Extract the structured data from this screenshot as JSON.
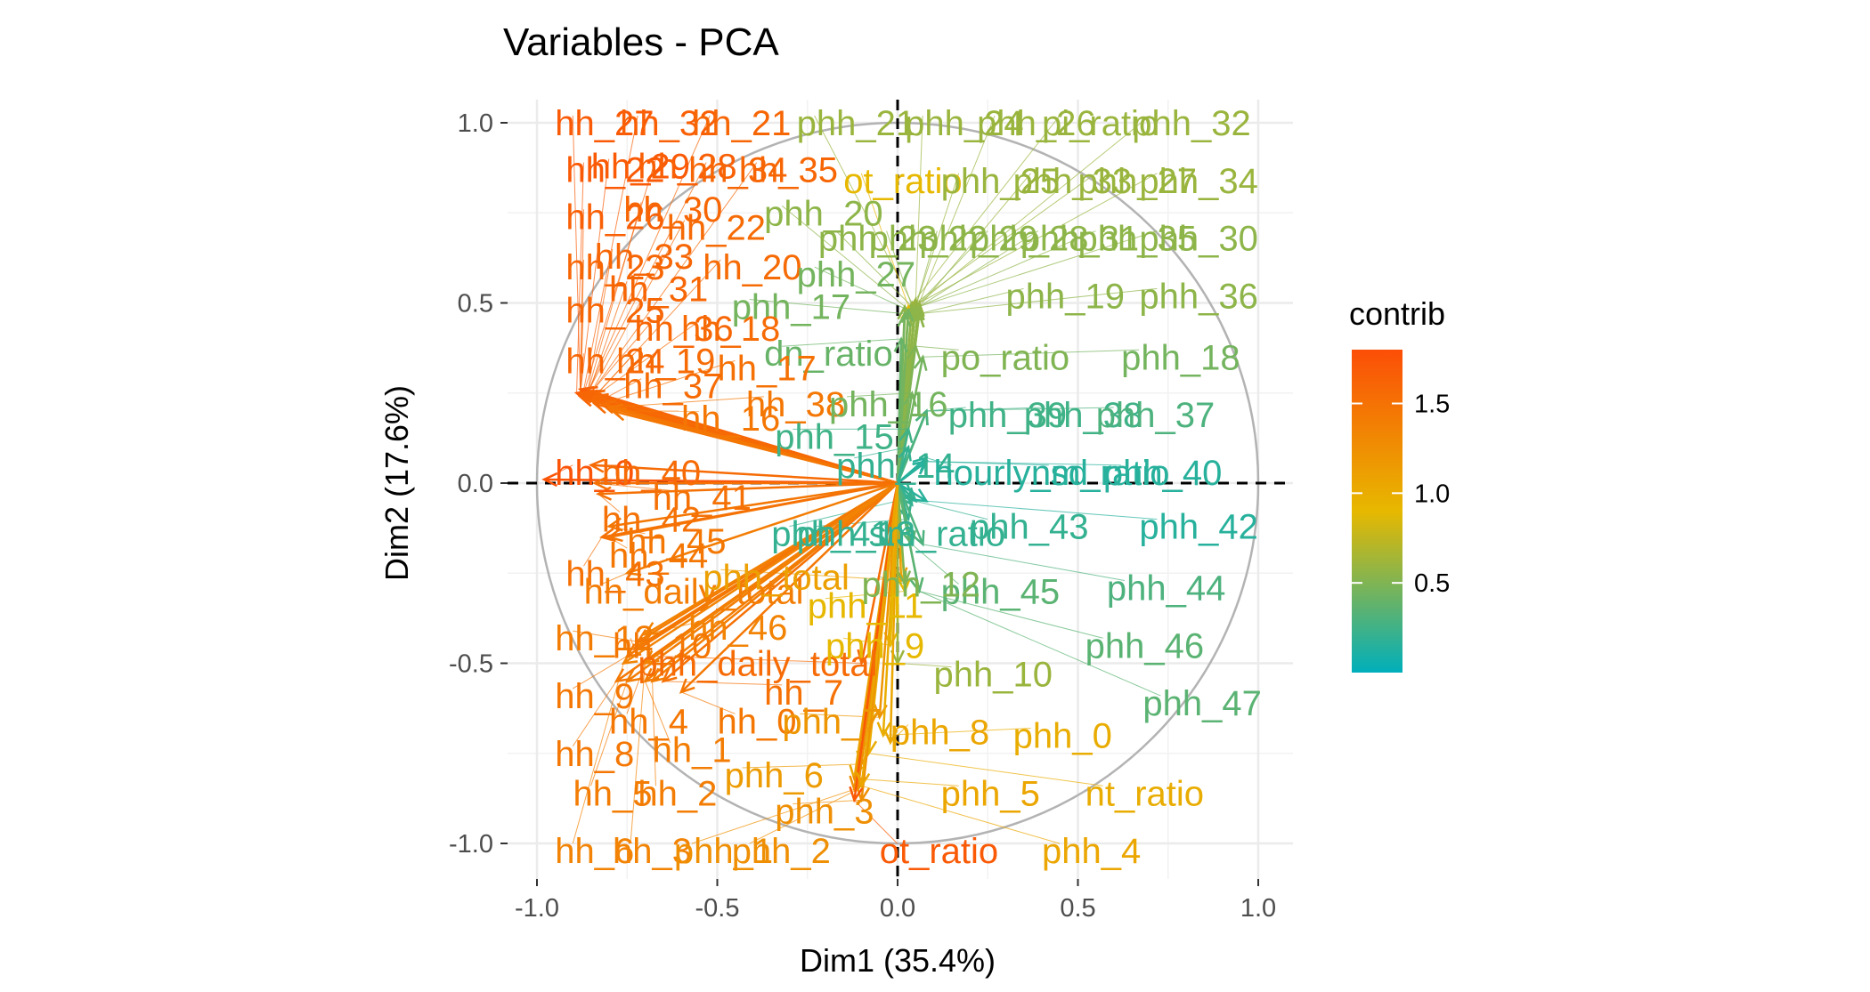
{
  "chart_data": {
    "type": "scatter",
    "title": "Variables - PCA",
    "xlabel": "Dim1 (35.4%)",
    "ylabel": "Dim2 (17.6%)",
    "xlim": [
      -1.0,
      1.0
    ],
    "ylim": [
      -1.0,
      1.0
    ],
    "xticks": [
      -1.0,
      -0.5,
      0.0,
      0.5,
      1.0
    ],
    "xtick_labels": [
      "-1.0",
      "-0.5",
      "0.0",
      "0.5",
      "1.0"
    ],
    "yticks": [
      1.0,
      0.5,
      0.0,
      -0.5,
      -1.0
    ],
    "ytick_labels": [
      "1.0",
      "0.5",
      "0.0",
      "-0.5",
      "-1.0"
    ],
    "grid": true,
    "correlation_circle": true,
    "reference_lines": [
      {
        "axis": "x",
        "value": 0,
        "style": "dashed"
      },
      {
        "axis": "y",
        "value": 0,
        "style": "dashed"
      }
    ],
    "color_scale": {
      "variable": "contrib",
      "range": [
        0.0,
        1.8
      ],
      "ticks": [
        0.5,
        1.0,
        1.5
      ],
      "tick_labels": [
        "0.5",
        "1.0",
        "1.5"
      ],
      "colors": [
        "#00AFBB",
        "#E7B800",
        "#FC4E07"
      ],
      "legend_position": "right"
    },
    "variables": [
      {
        "name": "hh_27",
        "x": -0.88,
        "y": 0.26,
        "lx": -0.95,
        "ly": 1.0,
        "c": 1.7
      },
      {
        "name": "hh_32",
        "x": -0.87,
        "y": 0.26,
        "lx": -0.77,
        "ly": 1.0,
        "c": 1.65
      },
      {
        "name": "hh_21",
        "x": -0.86,
        "y": 0.25,
        "lx": -0.57,
        "ly": 1.0,
        "c": 1.6
      },
      {
        "name": "phh_21",
        "x": 0.04,
        "y": 0.5,
        "lx": -0.28,
        "ly": 1.0,
        "c": 0.6
      },
      {
        "name": "phh_24",
        "x": 0.05,
        "y": 0.5,
        "lx": 0.02,
        "ly": 1.0,
        "c": 0.6
      },
      {
        "name": "phh_26",
        "x": 0.06,
        "y": 0.5,
        "lx": 0.22,
        "ly": 1.0,
        "c": 0.6
      },
      {
        "name": "pi_ratio",
        "x": 0.05,
        "y": 0.51,
        "lx": 0.4,
        "ly": 1.0,
        "c": 0.6
      },
      {
        "name": "phh_32",
        "x": 0.06,
        "y": 0.5,
        "lx": 0.65,
        "ly": 1.0,
        "c": 0.6
      },
      {
        "name": "hh_22",
        "x": -0.89,
        "y": 0.25,
        "lx": -0.92,
        "ly": 0.87,
        "c": 1.7
      },
      {
        "name": "hh_29",
        "x": -0.88,
        "y": 0.25,
        "lx": -0.85,
        "ly": 0.88,
        "c": 1.7
      },
      {
        "name": "hh_28",
        "x": -0.87,
        "y": 0.25,
        "lx": -0.72,
        "ly": 0.88,
        "c": 1.65
      },
      {
        "name": "hh_34",
        "x": -0.86,
        "y": 0.25,
        "lx": -0.58,
        "ly": 0.87,
        "c": 1.6
      },
      {
        "name": "hh_35",
        "x": -0.85,
        "y": 0.25,
        "lx": -0.44,
        "ly": 0.87,
        "c": 1.6
      },
      {
        "name": "ot_ratio",
        "x": 0.03,
        "y": 0.49,
        "lx": -0.15,
        "ly": 0.84,
        "c": 0.9
      },
      {
        "name": "phh_25",
        "x": 0.05,
        "y": 0.49,
        "lx": 0.12,
        "ly": 0.84,
        "c": 0.6
      },
      {
        "name": "phh_33",
        "x": 0.06,
        "y": 0.49,
        "lx": 0.32,
        "ly": 0.84,
        "c": 0.6
      },
      {
        "name": "phh_27",
        "x": 0.05,
        "y": 0.5,
        "lx": 0.5,
        "ly": 0.84,
        "c": 0.6
      },
      {
        "name": "phh_34",
        "x": 0.06,
        "y": 0.5,
        "lx": 0.67,
        "ly": 0.84,
        "c": 0.6
      },
      {
        "name": "hh_26",
        "x": -0.88,
        "y": 0.25,
        "lx": -0.92,
        "ly": 0.74,
        "c": 1.65
      },
      {
        "name": "hh_30",
        "x": -0.86,
        "y": 0.25,
        "lx": -0.76,
        "ly": 0.76,
        "c": 1.6
      },
      {
        "name": "hh_22",
        "x": -0.85,
        "y": 0.25,
        "lx": -0.64,
        "ly": 0.71,
        "c": 1.55
      },
      {
        "name": "phh_20",
        "x": 0.02,
        "y": 0.49,
        "lx": -0.37,
        "ly": 0.75,
        "c": 0.55
      },
      {
        "name": "phh_23",
        "x": 0.04,
        "y": 0.49,
        "lx": -0.22,
        "ly": 0.68,
        "c": 0.55
      },
      {
        "name": "phh_22",
        "x": 0.04,
        "y": 0.49,
        "lx": -0.08,
        "ly": 0.68,
        "c": 0.55
      },
      {
        "name": "phh_29",
        "x": 0.05,
        "y": 0.49,
        "lx": 0.06,
        "ly": 0.68,
        "c": 0.55
      },
      {
        "name": "phh_28",
        "x": 0.05,
        "y": 0.49,
        "lx": 0.2,
        "ly": 0.68,
        "c": 0.55
      },
      {
        "name": "phh_31",
        "x": 0.06,
        "y": 0.49,
        "lx": 0.34,
        "ly": 0.68,
        "c": 0.55
      },
      {
        "name": "phh_35",
        "x": 0.06,
        "y": 0.49,
        "lx": 0.5,
        "ly": 0.68,
        "c": 0.55
      },
      {
        "name": "phh_30",
        "x": 0.06,
        "y": 0.49,
        "lx": 0.67,
        "ly": 0.68,
        "c": 0.55
      },
      {
        "name": "hh_23",
        "x": -0.88,
        "y": 0.25,
        "lx": -0.92,
        "ly": 0.6,
        "c": 1.6
      },
      {
        "name": "hh_33",
        "x": -0.86,
        "y": 0.25,
        "lx": -0.84,
        "ly": 0.63,
        "c": 1.6
      },
      {
        "name": "hh_20",
        "x": -0.84,
        "y": 0.24,
        "lx": -0.54,
        "ly": 0.6,
        "c": 1.55
      },
      {
        "name": "phh_27",
        "x": 0.03,
        "y": 0.48,
        "lx": -0.28,
        "ly": 0.58,
        "c": 0.45
      },
      {
        "name": "hh_31",
        "x": -0.86,
        "y": 0.24,
        "lx": -0.8,
        "ly": 0.54,
        "c": 1.6
      },
      {
        "name": "hh_25",
        "x": -0.88,
        "y": 0.24,
        "lx": -0.92,
        "ly": 0.48,
        "c": 1.6
      },
      {
        "name": "phh_17",
        "x": 0.02,
        "y": 0.47,
        "lx": -0.46,
        "ly": 0.49,
        "c": 0.45
      },
      {
        "name": "phh_19",
        "x": 0.06,
        "y": 0.47,
        "lx": 0.3,
        "ly": 0.52,
        "c": 0.55
      },
      {
        "name": "phh_36",
        "x": 0.06,
        "y": 0.47,
        "lx": 0.67,
        "ly": 0.52,
        "c": 0.55
      },
      {
        "name": "hh_36",
        "x": -0.86,
        "y": 0.24,
        "lx": -0.73,
        "ly": 0.43,
        "c": 1.6
      },
      {
        "name": "hh_18",
        "x": -0.84,
        "y": 0.24,
        "lx": -0.6,
        "ly": 0.43,
        "c": 1.55
      },
      {
        "name": "dn_ratio",
        "x": 0.01,
        "y": 0.4,
        "lx": -0.37,
        "ly": 0.36,
        "c": 0.4
      },
      {
        "name": "po_ratio",
        "x": 0.05,
        "y": 0.38,
        "lx": 0.12,
        "ly": 0.35,
        "c": 0.5
      },
      {
        "name": "phh_18",
        "x": 0.07,
        "y": 0.35,
        "lx": 0.62,
        "ly": 0.35,
        "c": 0.45
      },
      {
        "name": "hh_24",
        "x": -0.88,
        "y": 0.24,
        "lx": -0.92,
        "ly": 0.34,
        "c": 1.6
      },
      {
        "name": "hh_19",
        "x": -0.85,
        "y": 0.23,
        "lx": -0.78,
        "ly": 0.34,
        "c": 1.55
      },
      {
        "name": "hh_17",
        "x": -0.82,
        "y": 0.22,
        "lx": -0.5,
        "ly": 0.32,
        "c": 1.5
      },
      {
        "name": "hh_37",
        "x": -0.84,
        "y": 0.22,
        "lx": -0.76,
        "ly": 0.27,
        "c": 1.55
      },
      {
        "name": "hh_38",
        "x": -0.8,
        "y": 0.21,
        "lx": -0.42,
        "ly": 0.22,
        "c": 1.45
      },
      {
        "name": "phh_16",
        "x": 0.04,
        "y": 0.25,
        "lx": -0.19,
        "ly": 0.22,
        "c": 0.45
      },
      {
        "name": "hh_16",
        "x": -0.79,
        "y": 0.2,
        "lx": -0.6,
        "ly": 0.18,
        "c": 1.45
      },
      {
        "name": "phh_39",
        "x": 0.08,
        "y": 0.2,
        "lx": 0.14,
        "ly": 0.19,
        "c": 0.25
      },
      {
        "name": "phh_38",
        "x": 0.08,
        "y": 0.2,
        "lx": 0.35,
        "ly": 0.19,
        "c": 0.25
      },
      {
        "name": "phh_37",
        "x": 0.08,
        "y": 0.2,
        "lx": 0.55,
        "ly": 0.19,
        "c": 0.3
      },
      {
        "name": "phh_15",
        "x": 0.03,
        "y": 0.15,
        "lx": -0.34,
        "ly": 0.13,
        "c": 0.25
      },
      {
        "name": "phh_14",
        "x": 0.03,
        "y": 0.1,
        "lx": -0.17,
        "ly": 0.05,
        "c": 0.2
      },
      {
        "name": "hourly_sd",
        "x": 0.08,
        "y": 0.07,
        "lx": 0.1,
        "ly": 0.03,
        "c": 0.15
      },
      {
        "name": "nm_ratio",
        "x": 0.08,
        "y": 0.06,
        "lx": 0.37,
        "ly": 0.03,
        "c": 0.15
      },
      {
        "name": "phh_40",
        "x": 0.08,
        "y": 0.06,
        "lx": 0.57,
        "ly": 0.03,
        "c": 0.15
      },
      {
        "name": "hh_0",
        "x": -0.98,
        "y": 0.01,
        "lx": -0.95,
        "ly": 0.03,
        "c": 1.75
      },
      {
        "name": "hh_40",
        "x": -0.85,
        "y": 0.05,
        "lx": -0.82,
        "ly": 0.03,
        "c": 1.55
      },
      {
        "name": "hh_41",
        "x": -0.84,
        "y": 0.0,
        "lx": -0.68,
        "ly": -0.04,
        "c": 1.5
      },
      {
        "name": "hh_42",
        "x": -0.83,
        "y": -0.03,
        "lx": -0.82,
        "ly": -0.1,
        "c": 1.5
      },
      {
        "name": "phh_41",
        "x": 0.04,
        "y": -0.04,
        "lx": -0.35,
        "ly": -0.14,
        "c": 0.2
      },
      {
        "name": "phh_43",
        "x": 0.05,
        "y": -0.05,
        "lx": 0.2,
        "ly": -0.12,
        "c": 0.2
      },
      {
        "name": "phh_42",
        "x": 0.08,
        "y": -0.05,
        "lx": 0.67,
        "ly": -0.12,
        "c": 0.15
      },
      {
        "name": "sm_ratio",
        "x": 0.04,
        "y": -0.06,
        "lx": -0.08,
        "ly": -0.14,
        "c": 0.2
      },
      {
        "name": "phh_13",
        "x": 0.03,
        "y": -0.1,
        "lx": -0.28,
        "ly": -0.14,
        "c": 0.2
      },
      {
        "name": "hh_45",
        "x": -0.8,
        "y": -0.12,
        "lx": -0.75,
        "ly": -0.16,
        "c": 1.45
      },
      {
        "name": "hh_44",
        "x": -0.8,
        "y": -0.15,
        "lx": -0.8,
        "ly": -0.2,
        "c": 1.45
      },
      {
        "name": "phh_45",
        "x": 0.04,
        "y": -0.17,
        "lx": 0.12,
        "ly": -0.3,
        "c": 0.35
      },
      {
        "name": "phh_44",
        "x": 0.07,
        "y": -0.17,
        "lx": 0.58,
        "ly": -0.29,
        "c": 0.3
      },
      {
        "name": "hh_43",
        "x": -0.82,
        "y": -0.15,
        "lx": -0.92,
        "ly": -0.25,
        "c": 1.5
      },
      {
        "name": "hh_daily_total",
        "x": -0.75,
        "y": -0.25,
        "lx": -0.87,
        "ly": -0.3,
        "c": 1.4
      },
      {
        "name": "phh_total",
        "x": 0.01,
        "y": -0.27,
        "lx": -0.54,
        "ly": -0.26,
        "c": 1.1
      },
      {
        "name": "phh_11",
        "x": 0.02,
        "y": -0.3,
        "lx": -0.25,
        "ly": -0.34,
        "c": 0.9
      },
      {
        "name": "phh_12",
        "x": 0.02,
        "y": -0.28,
        "lx": -0.1,
        "ly": -0.28,
        "c": 0.5
      },
      {
        "name": "hh_46",
        "x": -0.7,
        "y": -0.42,
        "lx": -0.58,
        "ly": -0.4,
        "c": 1.35
      },
      {
        "name": "phh_46",
        "x": 0.06,
        "y": -0.3,
        "lx": 0.52,
        "ly": -0.45,
        "c": 0.35
      },
      {
        "name": "hh_12",
        "x": -0.72,
        "y": -0.44,
        "lx": -0.95,
        "ly": -0.43,
        "c": 1.4
      },
      {
        "name": "hh_10",
        "x": -0.73,
        "y": -0.46,
        "lx": -0.79,
        "ly": -0.45,
        "c": 1.45
      },
      {
        "name": "phh_daily_total",
        "x": -0.1,
        "y": -0.5,
        "lx": -0.72,
        "ly": -0.5,
        "c": 1.55
      },
      {
        "name": "phh_9",
        "x": -0.02,
        "y": -0.45,
        "lx": -0.2,
        "ly": -0.45,
        "c": 0.9
      },
      {
        "name": "phh_10",
        "x": 0.0,
        "y": -0.5,
        "lx": 0.1,
        "ly": -0.53,
        "c": 0.6
      },
      {
        "name": "phh_47",
        "x": 0.06,
        "y": -0.3,
        "lx": 0.68,
        "ly": -0.61,
        "c": 0.35
      },
      {
        "name": "hh_9",
        "x": -0.75,
        "y": -0.48,
        "lx": -0.95,
        "ly": -0.59,
        "c": 1.45
      },
      {
        "name": "hh_7",
        "x": -0.65,
        "y": -0.55,
        "lx": -0.37,
        "ly": -0.58,
        "c": 1.5
      },
      {
        "name": "hh_4",
        "x": -0.7,
        "y": -0.5,
        "lx": -0.8,
        "ly": -0.66,
        "c": 1.45
      },
      {
        "name": "hh_0",
        "x": -0.6,
        "y": -0.58,
        "lx": -0.5,
        "ly": -0.66,
        "c": 1.45
      },
      {
        "name": "phh_7",
        "x": -0.05,
        "y": -0.65,
        "lx": -0.32,
        "ly": -0.66,
        "c": 1.2
      },
      {
        "name": "phh_8",
        "x": -0.02,
        "y": -0.72,
        "lx": -0.02,
        "ly": -0.69,
        "c": 1.05
      },
      {
        "name": "phh_0",
        "x": -0.04,
        "y": -0.7,
        "lx": 0.32,
        "ly": -0.7,
        "c": 1.0
      },
      {
        "name": "hh_8",
        "x": -0.78,
        "y": -0.55,
        "lx": -0.95,
        "ly": -0.75,
        "c": 1.45
      },
      {
        "name": "hh_1",
        "x": -0.7,
        "y": -0.55,
        "lx": -0.68,
        "ly": -0.74,
        "c": 1.4
      },
      {
        "name": "phh_6",
        "x": -0.1,
        "y": -0.78,
        "lx": -0.48,
        "ly": -0.81,
        "c": 1.15
      },
      {
        "name": "hh_5",
        "x": -0.75,
        "y": -0.55,
        "lx": -0.9,
        "ly": -0.86,
        "c": 1.4
      },
      {
        "name": "hh_2",
        "x": -0.68,
        "y": -0.55,
        "lx": -0.72,
        "ly": -0.86,
        "c": 1.4
      },
      {
        "name": "phh_5",
        "x": -0.12,
        "y": -0.82,
        "lx": 0.12,
        "ly": -0.86,
        "c": 1.05
      },
      {
        "name": "nt_ratio",
        "x": -0.08,
        "y": -0.75,
        "lx": 0.52,
        "ly": -0.86,
        "c": 1.0
      },
      {
        "name": "phh_3",
        "x": -0.1,
        "y": -0.88,
        "lx": -0.34,
        "ly": -0.91,
        "c": 1.25
      },
      {
        "name": "hh_6",
        "x": -0.76,
        "y": -0.5,
        "lx": -0.95,
        "ly": -1.02,
        "c": 1.35
      },
      {
        "name": "hh_3",
        "x": -0.7,
        "y": -0.5,
        "lx": -0.79,
        "ly": -1.02,
        "c": 1.35
      },
      {
        "name": "phh_1",
        "x": -0.12,
        "y": -0.85,
        "lx": -0.62,
        "ly": -1.02,
        "c": 1.25
      },
      {
        "name": "phh_2",
        "x": -0.11,
        "y": -0.85,
        "lx": -0.46,
        "ly": -1.02,
        "c": 1.25
      },
      {
        "name": "ot_ratio",
        "x": -0.12,
        "y": -0.88,
        "lx": -0.05,
        "ly": -1.02,
        "c": 1.7
      },
      {
        "name": "phh_4",
        "x": -0.1,
        "y": -0.84,
        "lx": 0.4,
        "ly": -1.02,
        "c": 1.05
      }
    ]
  },
  "legend": {
    "title": "contrib"
  }
}
